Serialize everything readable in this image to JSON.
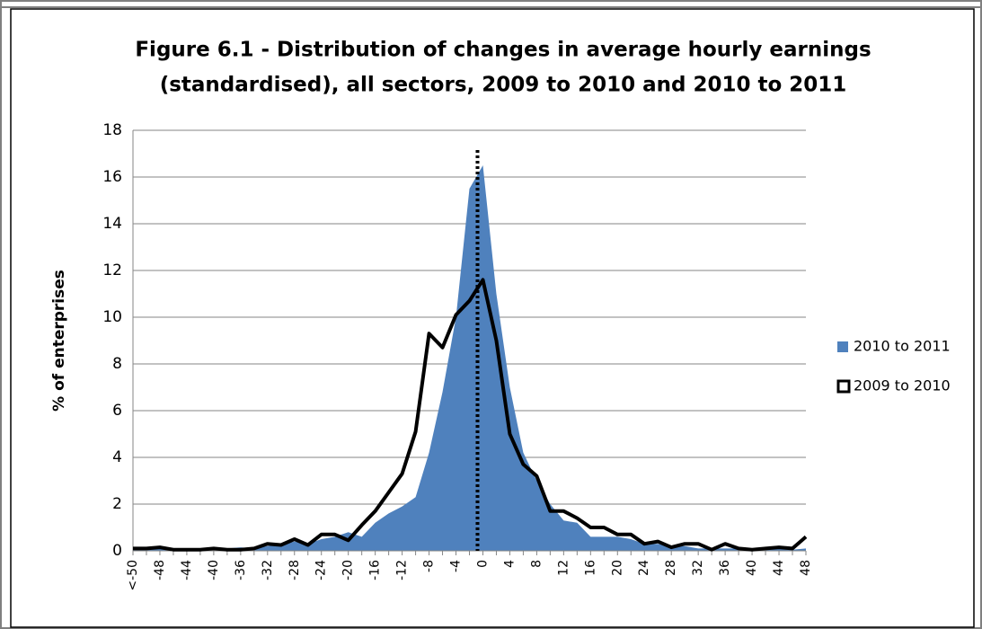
{
  "chart_data": {
    "type": "area-line",
    "title": [
      "Figure 6.1 - Distribution of changes in average hourly earnings",
      "(standardised), all sectors, 2009 to 2010 and 2010 to 2011"
    ],
    "y_label": "% of enterprises",
    "categories": [
      "<-50",
      null,
      "-48",
      null,
      "-44",
      null,
      "-40",
      null,
      "-36",
      null,
      "-32",
      null,
      "-28",
      null,
      "-24",
      null,
      "-20",
      null,
      "-16",
      null,
      "-12",
      null,
      "-8",
      null,
      "-4",
      null,
      "0",
      null,
      "4",
      null,
      "8",
      null,
      "12",
      null,
      "16",
      null,
      "20",
      null,
      "24",
      null,
      "28",
      null,
      "32",
      null,
      "36",
      null,
      "40",
      null,
      "44",
      null,
      "48"
    ],
    "series": [
      {
        "name": "2010 to 2011",
        "color": "#4f81bd",
        "style": "area",
        "values": [
          0.1,
          0.1,
          0.1,
          0.05,
          0.05,
          0.1,
          0.1,
          0.1,
          0.15,
          0.1,
          0.2,
          0.25,
          0.4,
          0.3,
          0.5,
          0.6,
          0.8,
          0.6,
          1.2,
          1.6,
          1.9,
          2.3,
          4.2,
          6.8,
          10.0,
          15.5,
          16.5,
          11.0,
          7.0,
          4.2,
          3.0,
          2.0,
          1.3,
          1.2,
          0.6,
          0.6,
          0.6,
          0.5,
          0.3,
          0.3,
          0.2,
          0.2,
          0.1,
          0.1,
          0.1,
          0.1,
          0.1,
          0.1,
          0.1,
          0.05,
          0.1
        ]
      },
      {
        "name": "2009 to 2010",
        "color": "#000000",
        "style": "line",
        "values": [
          0.1,
          0.1,
          0.15,
          0.05,
          0.05,
          0.05,
          0.1,
          0.05,
          0.05,
          0.1,
          0.3,
          0.25,
          0.5,
          0.25,
          0.7,
          0.7,
          0.45,
          1.1,
          1.7,
          2.5,
          3.3,
          5.1,
          9.3,
          8.7,
          10.1,
          10.7,
          11.6,
          9.0,
          5.0,
          3.7,
          3.2,
          1.7,
          1.7,
          1.4,
          1.0,
          1.0,
          0.7,
          0.7,
          0.3,
          0.4,
          0.15,
          0.3,
          0.3,
          0.05,
          0.3,
          0.1,
          0.05,
          0.1,
          0.15,
          0.1,
          0.6
        ]
      }
    ],
    "ylim": [
      0,
      18
    ],
    "yticks": [
      0,
      2,
      4,
      6,
      8,
      10,
      12,
      14,
      16,
      18
    ],
    "grid": true,
    "legend": "right"
  }
}
